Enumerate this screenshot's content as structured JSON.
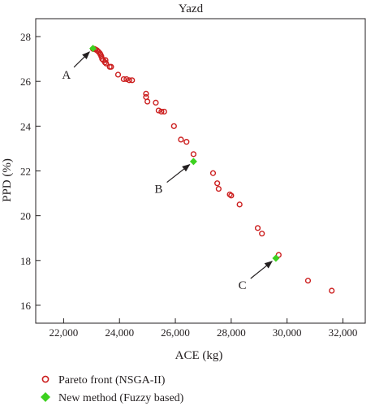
{
  "chart_data": {
    "type": "scatter",
    "title": "Yazd",
    "xlabel": "ACE (kg)",
    "ylabel": "PPD (%)",
    "xlim": [
      21000,
      32800
    ],
    "ylim": [
      15.2,
      28.8
    ],
    "x_ticks": [
      22000,
      24000,
      26000,
      28000,
      30000,
      32000
    ],
    "x_tick_labels": [
      "22,000",
      "24,000",
      "26,000",
      "28,000",
      "30,000",
      "32,000"
    ],
    "y_ticks": [
      16,
      18,
      20,
      22,
      24,
      26,
      28
    ],
    "y_tick_labels": [
      "16",
      "18",
      "20",
      "22",
      "24",
      "26",
      "28"
    ],
    "grid": false,
    "legend_position": "below",
    "series": [
      {
        "name": "Pareto front (NSGA-II)",
        "marker": "open-circle",
        "color": "#cc1f1f",
        "points": [
          [
            23050,
            27.45
          ],
          [
            23100,
            27.45
          ],
          [
            23150,
            27.42
          ],
          [
            23200,
            27.38
          ],
          [
            23250,
            27.32
          ],
          [
            23300,
            27.25
          ],
          [
            23320,
            27.2
          ],
          [
            23350,
            27.12
          ],
          [
            23380,
            27.0
          ],
          [
            23420,
            26.95
          ],
          [
            23500,
            26.95
          ],
          [
            23480,
            26.85
          ],
          [
            23520,
            26.8
          ],
          [
            23650,
            26.65
          ],
          [
            23700,
            26.65
          ],
          [
            23950,
            26.3
          ],
          [
            24150,
            26.1
          ],
          [
            24250,
            26.1
          ],
          [
            24350,
            26.05
          ],
          [
            24450,
            26.05
          ],
          [
            24950,
            25.45
          ],
          [
            24950,
            25.3
          ],
          [
            25000,
            25.1
          ],
          [
            25300,
            25.05
          ],
          [
            25400,
            24.7
          ],
          [
            25500,
            24.65
          ],
          [
            25600,
            24.65
          ],
          [
            25950,
            24.0
          ],
          [
            26200,
            23.4
          ],
          [
            26400,
            23.3
          ],
          [
            26650,
            22.75
          ],
          [
            27350,
            21.9
          ],
          [
            27500,
            21.45
          ],
          [
            27550,
            21.2
          ],
          [
            27950,
            20.95
          ],
          [
            28000,
            20.9
          ],
          [
            28300,
            20.5
          ],
          [
            28950,
            19.45
          ],
          [
            29100,
            19.2
          ],
          [
            29700,
            18.25
          ],
          [
            30750,
            17.1
          ],
          [
            31600,
            16.65
          ]
        ]
      },
      {
        "name": "New method (Fuzzy based)",
        "marker": "filled-diamond",
        "color": "#3cd11f",
        "points": [
          [
            23050,
            27.47
          ],
          [
            26650,
            22.42
          ],
          [
            29600,
            18.1
          ]
        ]
      }
    ],
    "annotations": [
      {
        "label": "A",
        "target": [
          23050,
          27.47
        ],
        "text_at": [
          22100,
          26.3
        ]
      },
      {
        "label": "B",
        "target": [
          26650,
          22.42
        ],
        "text_at": [
          25400,
          21.2
        ]
      },
      {
        "label": "C",
        "target": [
          29600,
          18.1
        ],
        "text_at": [
          28400,
          16.9
        ]
      }
    ]
  }
}
